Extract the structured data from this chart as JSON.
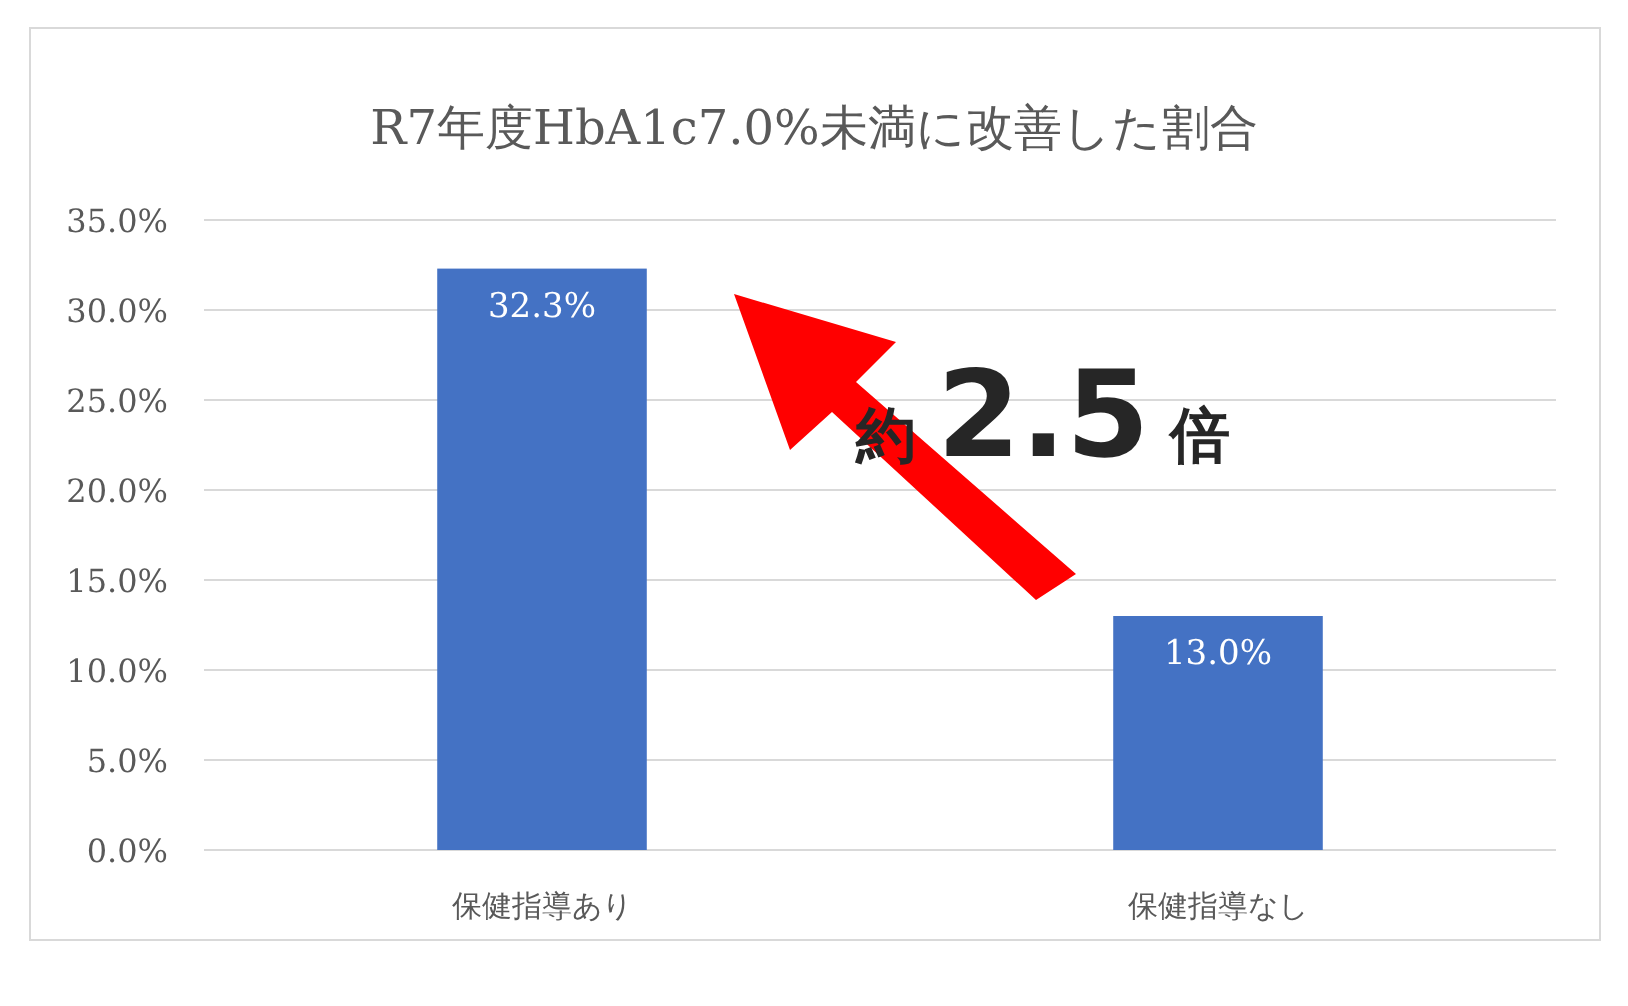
{
  "chart_data": {
    "type": "bar",
    "title": "R7年度HbA1c7.0%未満に改善した割合",
    "categories": [
      "保健指導あり",
      "保健指導なし"
    ],
    "values": [
      32.3,
      13.0
    ],
    "value_labels": [
      "32.3%",
      "13.0%"
    ],
    "color": "#4472c4",
    "ylim": [
      0,
      35
    ],
    "yticks": [
      {
        "value": 0,
        "label": "0.0%"
      },
      {
        "value": 5,
        "label": "5.0%"
      },
      {
        "value": 10,
        "label": "10.0%"
      },
      {
        "value": 15,
        "label": "15.0%"
      },
      {
        "value": 20,
        "label": "20.0%"
      },
      {
        "value": 25,
        "label": "25.0%"
      },
      {
        "value": 30,
        "label": "30.0%"
      },
      {
        "value": 35,
        "label": "35.0%"
      }
    ],
    "grid": "y",
    "annotations": [
      "約 2.5 倍"
    ]
  }
}
